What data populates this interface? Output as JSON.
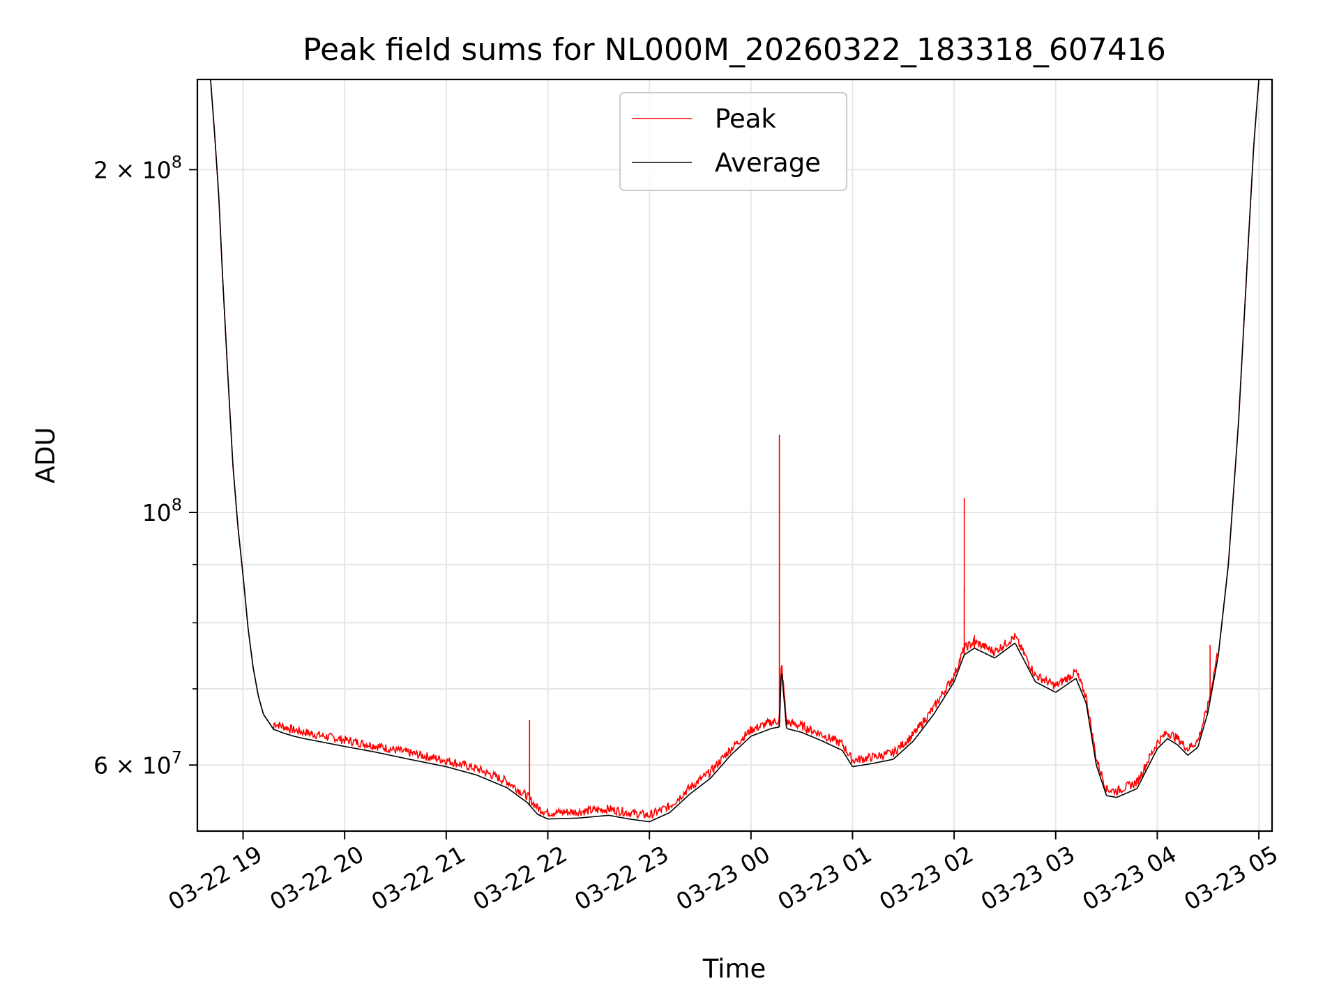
{
  "chart_data": {
    "type": "line",
    "title": "Peak field sums for NL000M_20260322_183318_607416",
    "xlabel": "Time",
    "ylabel": "ADU",
    "yscale": "log",
    "xlim_hours": [
      18.55,
      29.13
    ],
    "ylim": [
      52500000,
      240000000
    ],
    "x_ticks": [
      {
        "value": 19,
        "label": "03-22 19"
      },
      {
        "value": 20,
        "label": "03-22 20"
      },
      {
        "value": 21,
        "label": "03-22 21"
      },
      {
        "value": 22,
        "label": "03-22 22"
      },
      {
        "value": 23,
        "label": "03-22 23"
      },
      {
        "value": 24,
        "label": "03-23 00"
      },
      {
        "value": 25,
        "label": "03-23 01"
      },
      {
        "value": 26,
        "label": "03-23 02"
      },
      {
        "value": 27,
        "label": "03-23 03"
      },
      {
        "value": 28,
        "label": "03-23 04"
      },
      {
        "value": 29,
        "label": "03-23 05"
      }
    ],
    "y_major_ticks": [
      {
        "value": 60000000,
        "label": "6×10⁷",
        "mant": "6 × 10",
        "exp": "7"
      },
      {
        "value": 100000000,
        "label": "10⁸",
        "mant": "10",
        "exp": "8"
      },
      {
        "value": 200000000,
        "label": "2×10⁸",
        "mant": "2 × 10",
        "exp": "8"
      }
    ],
    "y_minor_ticks": [
      70000000,
      80000000,
      90000000
    ],
    "grid": true,
    "legend": {
      "position": "top-center",
      "entries": [
        {
          "name": "Peak",
          "color": "#ff0000"
        },
        {
          "name": "Average",
          "color": "#000000"
        }
      ]
    },
    "series": [
      {
        "name": "Average",
        "color": "#000000",
        "x": [
          18.68,
          18.72,
          18.76,
          18.8,
          18.85,
          18.9,
          18.95,
          19.0,
          19.05,
          19.1,
          19.15,
          19.2,
          19.3,
          19.4,
          19.5,
          19.6,
          19.8,
          20.0,
          20.3,
          20.6,
          21.0,
          21.3,
          21.6,
          21.8,
          21.9,
          22.0,
          22.3,
          22.6,
          22.8,
          23.0,
          23.2,
          23.4,
          23.6,
          23.8,
          24.0,
          24.2,
          24.28,
          24.3,
          24.35,
          24.5,
          24.7,
          24.9,
          25.0,
          25.2,
          25.4,
          25.6,
          25.8,
          26.0,
          26.1,
          26.2,
          26.4,
          26.6,
          26.8,
          27.0,
          27.2,
          27.3,
          27.4,
          27.5,
          27.6,
          27.8,
          28.0,
          28.1,
          28.2,
          28.3,
          28.4,
          28.5,
          28.6,
          28.7,
          28.8,
          28.9,
          28.95,
          29.0
        ],
        "values": [
          240000000,
          215000000,
          190000000,
          160000000,
          132000000,
          110000000,
          97000000,
          88000000,
          79000000,
          73000000,
          69000000,
          66500000,
          64500000,
          64000000,
          63600000,
          63300000,
          62800000,
          62300000,
          61600000,
          60800000,
          59800000,
          58800000,
          57300000,
          55600000,
          54300000,
          53800000,
          53900000,
          54200000,
          53800000,
          53500000,
          54500000,
          56600000,
          58400000,
          61200000,
          63600000,
          64600000,
          64800000,
          73000000,
          64600000,
          64100000,
          63000000,
          61800000,
          59800000,
          60200000,
          60700000,
          63000000,
          66500000,
          71000000,
          75000000,
          76000000,
          74500000,
          76800000,
          71000000,
          69500000,
          71500000,
          68000000,
          60000000,
          56400000,
          56200000,
          57200000,
          62000000,
          63300000,
          62500000,
          61200000,
          62200000,
          66800000,
          74800000,
          90000000,
          120000000,
          175000000,
          210000000,
          240000000
        ]
      },
      {
        "name": "Peak",
        "color": "#ff0000",
        "spikes": [
          {
            "x": 21.82,
            "value": 65700000
          },
          {
            "x": 24.28,
            "value": 117000000
          },
          {
            "x": 26.1,
            "value": 103000000
          },
          {
            "x": 26.1,
            "value": 86000000
          },
          {
            "x": 26.2,
            "value": 78000000
          },
          {
            "x": 28.52,
            "value": 76500000
          }
        ]
      }
    ]
  }
}
